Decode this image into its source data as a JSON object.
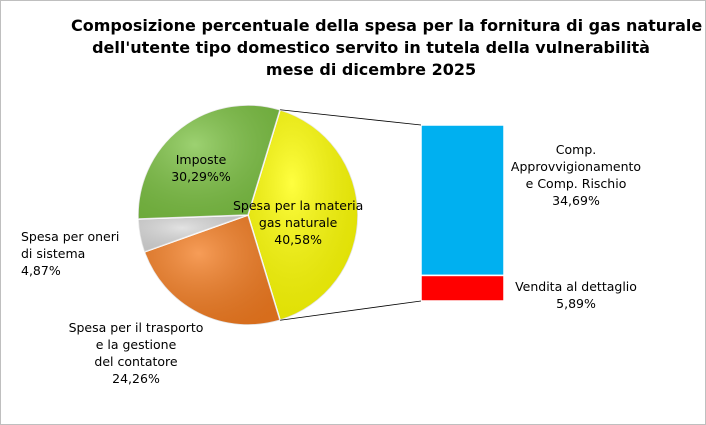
{
  "chart_data": {
    "type": "pie",
    "title": [
      "Composizione percentuale della spesa per la fornitura di gas naturale",
      "dell'utente tipo domestico servito in tutela della vulnerabilità",
      "mese di dicembre 2025"
    ],
    "slices": [
      {
        "label_lines": [
          "Spesa per la materia",
          "gas naturale"
        ],
        "value_label": "40,58%",
        "value": 40.58,
        "color": "#ffff00"
      },
      {
        "label_lines": [
          "Spesa per il trasporto",
          "e la gestione",
          "del contatore"
        ],
        "value_label": "24,26%",
        "value": 24.26,
        "color": "#f47c20"
      },
      {
        "label_lines": [
          "Spesa per oneri",
          "di sistema"
        ],
        "value_label": "4,87%",
        "value": 4.87,
        "color": "#d9d9d9"
      },
      {
        "label_lines": [
          "Imposte"
        ],
        "value_label": "30,29%%",
        "value": 30.29,
        "color": "#7cc242"
      }
    ],
    "breakdown": {
      "of_slice": "Spesa per la materia gas naturale",
      "segments": [
        {
          "label_lines": [
            "Comp.",
            "Approvvigionamento",
            "e  Comp. Rischio"
          ],
          "value_label": "34,69%",
          "value": 34.69,
          "color": "#00b0f0"
        },
        {
          "label_lines": [
            "Vendita al dettaglio"
          ],
          "value_label": "5,89%",
          "value": 5.89,
          "color": "#ff0000"
        }
      ]
    }
  }
}
